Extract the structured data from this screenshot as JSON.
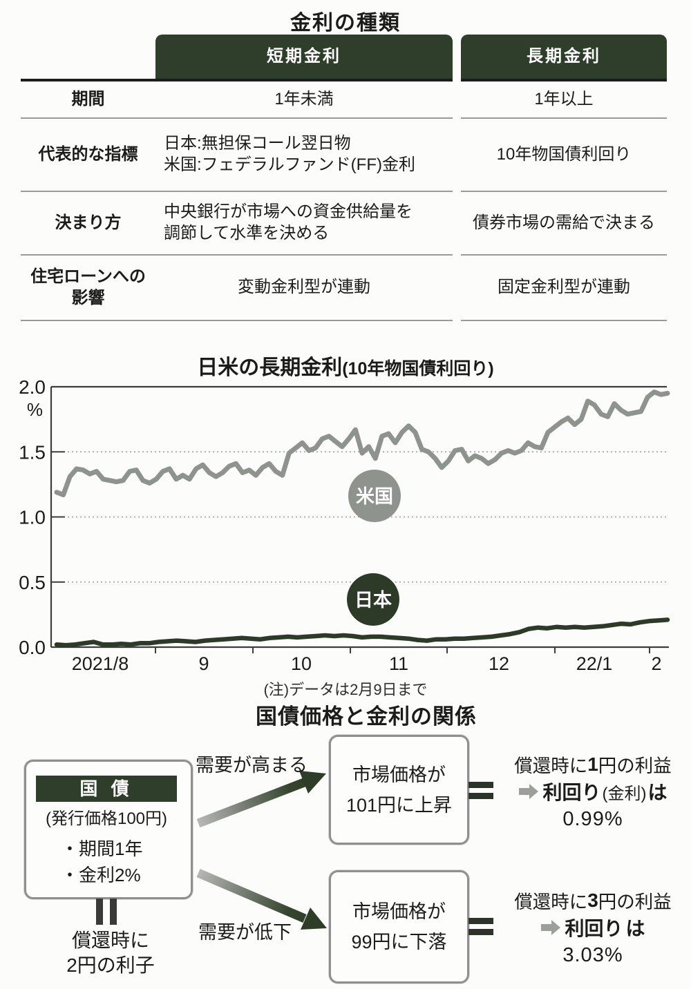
{
  "table": {
    "title": "金利の種類",
    "col_headers": [
      "短期金利",
      "長期金利"
    ],
    "rows": [
      {
        "label": "期間",
        "short": "1年未満",
        "long": "1年以上"
      },
      {
        "label": "代表的な指標",
        "short": "日本:無担保コール翌日物\n米国:フェデラルファンド(FF)金利",
        "long": "10年物国債利回り"
      },
      {
        "label": "決まり方",
        "short": "中央銀行が市場への資金供給量を\n調節して水準を決める",
        "long": "債券市場の需給で決まる"
      },
      {
        "label": "住宅ローンへの\n影響",
        "short": "変動金利型が連動",
        "long": "固定金利型が連動"
      }
    ]
  },
  "chart": {
    "title_main": "日米の長期金利",
    "title_paren": "(10年物国債利回り)",
    "unit": "%",
    "y_ticks": [
      "2.0",
      "1.5",
      "1.0",
      "0.5",
      "0.0"
    ],
    "x_tick_labels": [
      "2021/8",
      "9",
      "10",
      "11",
      "12",
      "22/1",
      "2"
    ],
    "note": "(注)データは2月9日まで",
    "series_labels": {
      "us": "米国",
      "japan": "日本"
    },
    "colors": {
      "us": "#8e938e",
      "japan": "#2c3a27",
      "grid": "#9a9a9a",
      "axis": "#3c3c3c"
    }
  },
  "chart_data": {
    "type": "line",
    "title": "日米の長期金利(10年物国債利回り)",
    "ylabel": "%",
    "ylim": [
      0,
      2
    ],
    "x_range": "2021年7月下旬〜2022年2月9日",
    "x_tick_labels": [
      "2021/8",
      "9",
      "10",
      "11",
      "12",
      "22/1",
      "2"
    ],
    "grid": "dotted horizontal at 0.5 steps",
    "legend": "inline circle badges on plot",
    "note": "(注)データは2月9日まで",
    "series": [
      {
        "name": "米国",
        "values": [
          1.19,
          1.17,
          1.31,
          1.37,
          1.36,
          1.33,
          1.35,
          1.29,
          1.28,
          1.27,
          1.28,
          1.35,
          1.36,
          1.28,
          1.26,
          1.29,
          1.35,
          1.37,
          1.29,
          1.32,
          1.29,
          1.37,
          1.4,
          1.34,
          1.31,
          1.34,
          1.39,
          1.41,
          1.34,
          1.36,
          1.32,
          1.38,
          1.41,
          1.35,
          1.32,
          1.49,
          1.53,
          1.57,
          1.51,
          1.53,
          1.6,
          1.62,
          1.58,
          1.54,
          1.6,
          1.67,
          1.49,
          1.54,
          1.45,
          1.62,
          1.64,
          1.57,
          1.65,
          1.7,
          1.65,
          1.52,
          1.5,
          1.45,
          1.38,
          1.43,
          1.51,
          1.52,
          1.43,
          1.47,
          1.45,
          1.41,
          1.44,
          1.49,
          1.51,
          1.49,
          1.51,
          1.57,
          1.54,
          1.53,
          1.65,
          1.69,
          1.73,
          1.76,
          1.71,
          1.75,
          1.89,
          1.86,
          1.79,
          1.77,
          1.87,
          1.82,
          1.79,
          1.8,
          1.81,
          1.92,
          1.96,
          1.94,
          1.95
        ]
      },
      {
        "name": "日本",
        "values": [
          0.02,
          0.015,
          0.02,
          0.03,
          0.04,
          0.02,
          0.02,
          0.025,
          0.02,
          0.03,
          0.03,
          0.04,
          0.045,
          0.05,
          0.045,
          0.04,
          0.05,
          0.055,
          0.06,
          0.065,
          0.07,
          0.065,
          0.06,
          0.07,
          0.075,
          0.08,
          0.075,
          0.08,
          0.085,
          0.09,
          0.085,
          0.09,
          0.085,
          0.075,
          0.08,
          0.08,
          0.075,
          0.07,
          0.065,
          0.055,
          0.05,
          0.06,
          0.06,
          0.065,
          0.065,
          0.07,
          0.075,
          0.08,
          0.09,
          0.1,
          0.115,
          0.14,
          0.15,
          0.145,
          0.155,
          0.15,
          0.155,
          0.15,
          0.155,
          0.16,
          0.17,
          0.18,
          0.175,
          0.19,
          0.2,
          0.205,
          0.21
        ]
      }
    ]
  },
  "diagram": {
    "title": "国債価格と金利の関係",
    "bond_box": {
      "header": "国 債",
      "sub": "(発行価格100円)",
      "item1": "・期間1年",
      "item2": "・金利2%"
    },
    "below": {
      "line1": "償還時に",
      "line2": "2円の利子"
    },
    "arrow_up_label": "需要が高まる",
    "arrow_down_label": "需要が低下",
    "box_up": {
      "line1": "市場価格が",
      "line2": "101円に上昇"
    },
    "box_down": {
      "line1": "市場価格が",
      "line2": "99円に下落"
    },
    "result_up": {
      "l1_pre": "償還時に",
      "l1_num": "1",
      "l1_post": "円の利益",
      "l2_main": "利回り",
      "l2_paren": "(金利)",
      "l2_suffix": "は",
      "l3": "0.99%"
    },
    "result_down": {
      "l1_pre": "償還時に",
      "l1_num": "3",
      "l1_post": "円の利益",
      "l2_main": "利回り",
      "l2_paren": "",
      "l2_suffix": "は",
      "l3": "3.03%"
    }
  }
}
